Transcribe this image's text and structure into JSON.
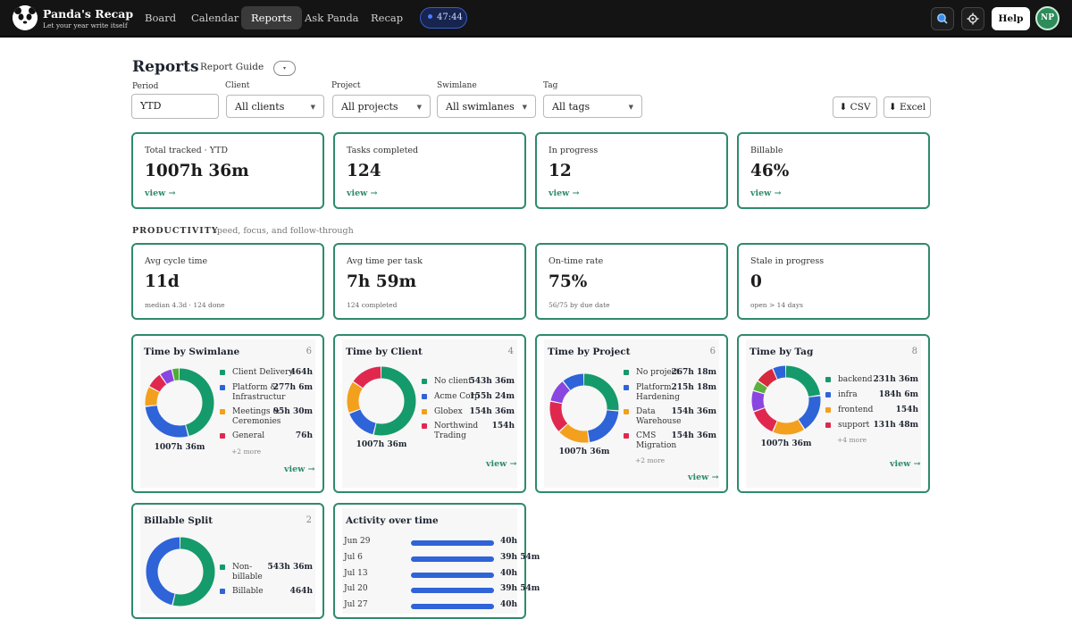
{
  "app": {
    "brand_title": "Panda's Recap",
    "brand_sub": "Let your year write itself",
    "nav": [
      "Board",
      "Calendar",
      "Reports",
      "Ask Panda",
      "Recap"
    ],
    "active_nav": "Reports",
    "timer": "47:44",
    "help": "Help",
    "avatar": "NP"
  },
  "header": {
    "title": "Reports",
    "guide": "Report Guide",
    "guide_toggle": "▾"
  },
  "filters": {
    "period_label": "Period",
    "period_value": "YTD",
    "client_label": "Client",
    "client_value": "All clients",
    "project_label": "Project",
    "project_value": "All projects",
    "swimlane_label": "Swimlane",
    "swimlane_value": "All swimlanes",
    "tag_label": "Tag",
    "tag_value": "All tags",
    "csv": "⬇ CSV",
    "excel": "⬇ Excel"
  },
  "summary": [
    {
      "label": "Total tracked · YTD",
      "value": "1007h 36m",
      "link": "view →"
    },
    {
      "label": "Tasks completed",
      "value": "124",
      "link": "view →"
    },
    {
      "label": "In progress",
      "value": "12",
      "link": "view →"
    },
    {
      "label": "Billable",
      "value": "46%",
      "link": "view →"
    }
  ],
  "productivity": {
    "heading": "PRODUCTIVITY",
    "subheading": "speed, focus, and follow-through",
    "cards": [
      {
        "label": "Avg cycle time",
        "value": "11d",
        "sub": "median 4.3d · 124 done"
      },
      {
        "label": "Avg time per task",
        "value": "7h 59m",
        "sub": "124 completed"
      },
      {
        "label": "On-time rate",
        "value": "75%",
        "sub": "56/75 by due date"
      },
      {
        "label": "Stale in progress",
        "value": "0",
        "sub": "open > 14 days"
      }
    ]
  },
  "panels": {
    "swimlane": {
      "title": "Time by Swimlane",
      "count": "6",
      "total": "1007h 36m",
      "more": "+2 more",
      "link": "view →",
      "items": [
        {
          "name": "Client Delivery",
          "value": "464h",
          "color": "#159a6b",
          "share": 0.46
        },
        {
          "name": "Platform & Infrastructur",
          "value": "277h 6m",
          "color": "#2f63d8",
          "share": 0.275
        },
        {
          "name": "Meetings & Ceremonies",
          "value": "95h 30m",
          "color": "#f2a01d",
          "share": 0.095
        },
        {
          "name": "General",
          "value": "76h",
          "color": "#e0284f",
          "share": 0.075
        },
        {
          "name": "",
          "value": "",
          "color": "#8a46e0",
          "share": 0.06
        },
        {
          "name": "",
          "value": "",
          "color": "#4cae34",
          "share": 0.035
        }
      ]
    },
    "client": {
      "title": "Time by Client",
      "count": "4",
      "total": "1007h 36m",
      "more": "",
      "link": "view →",
      "items": [
        {
          "name": "No client",
          "value": "543h 36m",
          "color": "#159a6b",
          "share": 0.54
        },
        {
          "name": "Acme Corp",
          "value": "155h 24m",
          "color": "#2f63d8",
          "share": 0.154
        },
        {
          "name": "Globex",
          "value": "154h 36m",
          "color": "#f2a01d",
          "share": 0.153
        },
        {
          "name": "Northwind Trading",
          "value": "154h",
          "color": "#e0284f",
          "share": 0.153
        }
      ]
    },
    "project": {
      "title": "Time by Project",
      "count": "6",
      "total": "1007h 36m",
      "more": "+2 more",
      "link": "view →",
      "items": [
        {
          "name": "No project",
          "value": "267h 18m",
          "color": "#159a6b",
          "share": 0.265
        },
        {
          "name": "Platform Hardening",
          "value": "215h 18m",
          "color": "#2f63d8",
          "share": 0.214
        },
        {
          "name": "Data Warehouse",
          "value": "154h 36m",
          "color": "#f2a01d",
          "share": 0.153
        },
        {
          "name": "CMS Migration",
          "value": "154h 36m",
          "color": "#e0284f",
          "share": 0.153
        },
        {
          "name": "",
          "value": "",
          "color": "#8a46e0",
          "share": 0.11
        },
        {
          "name": "",
          "value": "",
          "color": "#2f63d8",
          "share": 0.105
        }
      ]
    },
    "tag": {
      "title": "Time by Tag",
      "count": "8",
      "total": "1007h 36m",
      "more": "+4 more",
      "link": "view →",
      "items": [
        {
          "name": "backend",
          "value": "231h 36m",
          "color": "#159a6b",
          "share": 0.23
        },
        {
          "name": "infra",
          "value": "184h 6m",
          "color": "#2f63d8",
          "share": 0.183
        },
        {
          "name": "frontend",
          "value": "154h",
          "color": "#f2a01d",
          "share": 0.153
        },
        {
          "name": "support",
          "value": "131h 48m",
          "color": "#e0284f",
          "share": 0.131
        },
        {
          "name": "",
          "value": "",
          "color": "#8a46e0",
          "share": 0.1
        },
        {
          "name": "",
          "value": "",
          "color": "#5ab13a",
          "share": 0.05
        },
        {
          "name": "",
          "value": "",
          "color": "#d8283e",
          "share": 0.09
        },
        {
          "name": "",
          "value": "",
          "color": "#2f63d8",
          "share": 0.063
        }
      ]
    },
    "billable": {
      "title": "Billable Split",
      "count": "2",
      "items": [
        {
          "name": "Non-billable",
          "value": "543h 36m",
          "color": "#159a6b",
          "share": 0.54
        },
        {
          "name": "Billable",
          "value": "464h",
          "color": "#2f63d8",
          "share": 0.46
        }
      ]
    },
    "activity": {
      "title": "Activity over time",
      "rows": [
        {
          "date": "Jun 29",
          "value": "40h",
          "fill": 1.0
        },
        {
          "date": "Jul 6",
          "value": "39h 54m",
          "fill": 0.996
        },
        {
          "date": "Jul 13",
          "value": "40h",
          "fill": 1.0
        },
        {
          "date": "Jul 20",
          "value": "39h 54m",
          "fill": 0.996
        },
        {
          "date": "Jul 27",
          "value": "40h",
          "fill": 1.0
        }
      ]
    }
  }
}
